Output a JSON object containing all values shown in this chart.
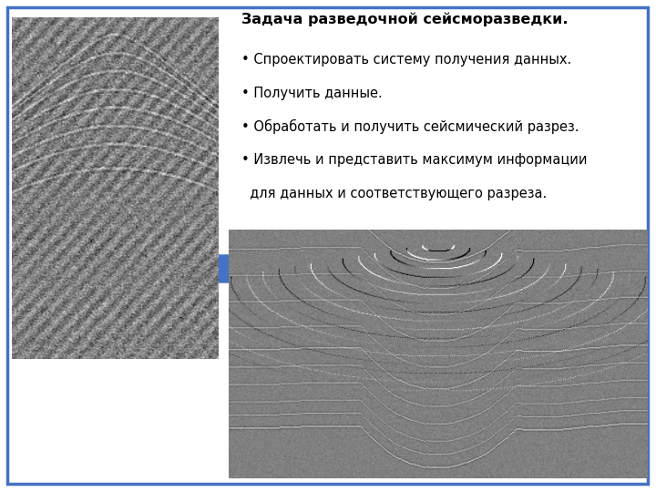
{
  "background_color": "#ffffff",
  "border_color": "#4472c4",
  "border_linewidth": 2.5,
  "title_text": "Задача разведочной сейсморазведки.",
  "bullet1": "• Спроектировать систему получения данных.",
  "bullet2": "• Получить данные.",
  "bullet3": "• Обработать и получить сейсмический разрез.",
  "bullet4": "• Извлечь и представить максимум информации",
  "bullet5": "  для данных и соответствующего разреза.",
  "arrow_color": "#4472c4",
  "text_color": "#000000",
  "title_fontsize": 11.5,
  "body_fontsize": 10.5
}
